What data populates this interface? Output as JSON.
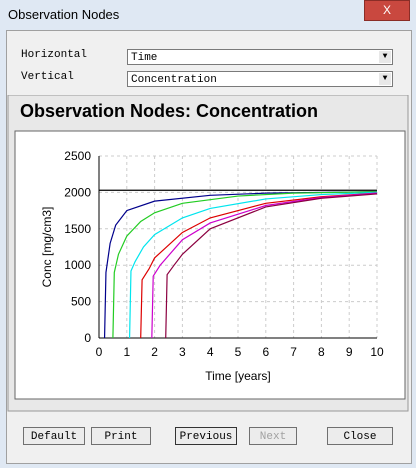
{
  "window": {
    "title": "Observation Nodes",
    "close": "X"
  },
  "controls": {
    "horizontal": {
      "label": "Horizontal",
      "value": "Time"
    },
    "vertical": {
      "label": "Vertical",
      "value": "Concentration"
    }
  },
  "buttons": [
    "Default",
    "Print",
    "Previous",
    "Next",
    "Close"
  ],
  "chart_data": {
    "type": "line",
    "title": "Observation Nodes: Concentration",
    "x_label": "Time [years]",
    "y_label": "Conc [mg/cm3]",
    "xlim": [
      0,
      10
    ],
    "ylim": [
      0,
      2500
    ],
    "xticks": [
      0,
      1,
      2,
      3,
      4,
      5,
      6,
      7,
      8,
      9,
      10
    ],
    "yticks": [
      0,
      500,
      1000,
      1500,
      2000,
      2500
    ],
    "grid": true,
    "series": [
      {
        "color": "#000000",
        "x": [
          0,
          10
        ],
        "values": [
          2030,
          2030
        ]
      },
      {
        "color": "#00008b",
        "x": [
          0.2,
          0.25,
          0.4,
          0.6,
          1,
          2,
          4,
          6,
          10
        ],
        "values": [
          0,
          900,
          1300,
          1550,
          1750,
          1880,
          1960,
          1990,
          2010
        ]
      },
      {
        "color": "#22cc22",
        "x": [
          0.5,
          0.55,
          0.7,
          1,
          1.5,
          2,
          3,
          5,
          7,
          10
        ],
        "values": [
          0,
          900,
          1150,
          1400,
          1600,
          1720,
          1850,
          1950,
          1990,
          2010
        ]
      },
      {
        "color": "#00e5ee",
        "x": [
          1.1,
          1.15,
          1.3,
          1.6,
          2,
          3,
          4,
          6,
          8,
          10
        ],
        "values": [
          0,
          920,
          1050,
          1250,
          1420,
          1650,
          1780,
          1910,
          1970,
          2000
        ]
      },
      {
        "color": "#dd0000",
        "x": [
          1.5,
          1.55,
          1.8,
          2,
          3,
          4,
          6,
          8,
          10
        ],
        "values": [
          0,
          800,
          950,
          1100,
          1450,
          1650,
          1850,
          1940,
          1990
        ]
      },
      {
        "color": "#cc00cc",
        "x": [
          1.9,
          1.95,
          2.2,
          3,
          4,
          6,
          8,
          10
        ],
        "values": [
          0,
          850,
          1000,
          1350,
          1580,
          1820,
          1930,
          1990
        ]
      },
      {
        "color": "#8b0040",
        "x": [
          2.4,
          2.45,
          2.7,
          3,
          4,
          6,
          8,
          10
        ],
        "values": [
          0,
          870,
          1000,
          1150,
          1500,
          1800,
          1920,
          1980
        ]
      }
    ]
  }
}
